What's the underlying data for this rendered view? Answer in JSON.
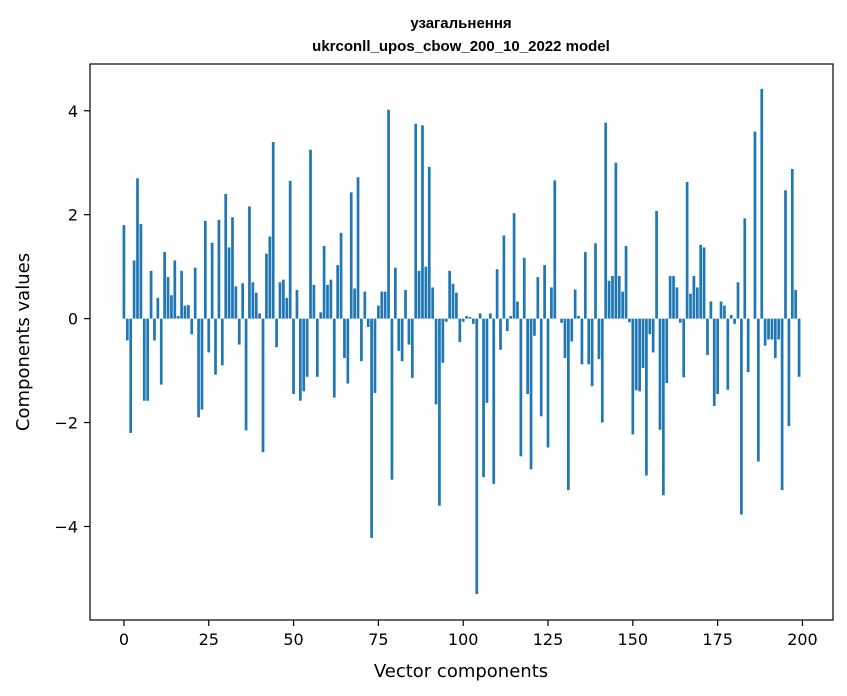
{
  "chart_data": {
    "type": "bar",
    "title_line1": "узагальнення",
    "title_line2": "ukrconll_upos_cbow_200_10_2022 model",
    "xlabel": "Vector components",
    "ylabel": "Components values",
    "xlim": [
      -10,
      209
    ],
    "ylim": [
      -5.8,
      4.9
    ],
    "xticks": [
      0,
      25,
      50,
      75,
      100,
      125,
      150,
      175,
      200
    ],
    "yticks": [
      -4,
      -2,
      0,
      2,
      4
    ],
    "ytick_labels": [
      "−4",
      "−2",
      "0",
      "2",
      "4"
    ],
    "bar_color": "#1f77b4",
    "series": [
      {
        "name": "узагальнення",
        "values": [
          1.8,
          -0.42,
          -2.2,
          1.12,
          2.7,
          1.82,
          -1.58,
          -1.58,
          0.92,
          -0.42,
          0.4,
          -1.27,
          1.28,
          0.8,
          0.45,
          1.12,
          0.05,
          0.92,
          0.25,
          0.26,
          -0.3,
          0.98,
          -1.9,
          -1.75,
          1.88,
          -0.65,
          1.46,
          -1.08,
          1.9,
          -0.9,
          2.4,
          1.37,
          1.95,
          0.62,
          -0.5,
          0.68,
          -2.15,
          2.16,
          0.7,
          0.5,
          0.1,
          -2.57,
          1.25,
          1.58,
          3.4,
          -0.55,
          0.7,
          0.75,
          0.4,
          2.65,
          -1.45,
          0.55,
          -1.58,
          -1.4,
          -1.12,
          3.25,
          0.65,
          -1.12,
          0.12,
          1.4,
          0.65,
          0.75,
          -1.52,
          1.03,
          1.65,
          -0.76,
          -1.25,
          2.43,
          0.58,
          2.72,
          -0.82,
          0.52,
          -0.16,
          -4.22,
          -1.43,
          0.25,
          0.52,
          0.52,
          4.02,
          -3.1,
          0.98,
          -0.62,
          -0.82,
          0.55,
          -0.5,
          -1.14,
          3.75,
          0.92,
          3.72,
          1.0,
          2.92,
          0.6,
          -1.65,
          -3.6,
          -0.85,
          -0.06,
          0.92,
          0.67,
          0.5,
          -0.45,
          -0.06,
          0.05,
          0.03,
          -0.1,
          -5.3,
          0.1,
          -3.05,
          -1.62,
          0.1,
          -3.18,
          0.95,
          -0.6,
          1.6,
          -0.24,
          0.05,
          2.03,
          0.33,
          -2.65,
          1.17,
          -1.45,
          -2.9,
          -0.33,
          0.8,
          -1.88,
          1.03,
          -2.48,
          0.6,
          2.66,
          0.0,
          -0.08,
          -0.76,
          -3.3,
          -0.44,
          0.56,
          0.05,
          -0.88,
          1.28,
          -0.88,
          -1.3,
          1.45,
          -0.78,
          -2.0,
          3.77,
          0.73,
          0.82,
          3.0,
          0.82,
          0.52,
          1.4,
          -0.07,
          -2.23,
          -1.38,
          -1.4,
          -0.95,
          -3.02,
          -0.3,
          -0.65,
          2.07,
          -2.14,
          -3.4,
          -1.24,
          0.82,
          0.82,
          0.6,
          -0.08,
          -1.13,
          2.63,
          0.48,
          0.82,
          0.6,
          1.42,
          1.37,
          -0.7,
          0.33,
          -1.68,
          -1.45,
          0.33,
          0.25,
          -1.37,
          0.07,
          -0.1,
          0.7,
          -3.77,
          1.93,
          -1.03,
          0.0,
          3.6,
          -2.75,
          4.42,
          -0.52,
          -0.4,
          -0.4,
          -0.76,
          -0.4,
          -3.3,
          2.47,
          -2.07,
          2.88,
          0.55,
          -1.12
        ]
      }
    ]
  }
}
